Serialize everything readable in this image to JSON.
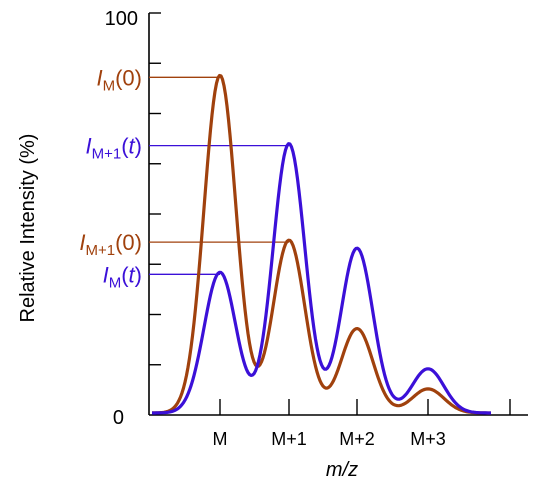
{
  "chart_data": {
    "type": "line",
    "title": "",
    "xlabel": "m/z",
    "ylabel": "Relative Intensity (%)",
    "ylim": [
      0,
      100
    ],
    "y_tick_labels": [
      "0",
      "100"
    ],
    "y_tick_count": 9,
    "categories": [
      "M",
      "M+1",
      "M+2",
      "M+3"
    ],
    "grid": false,
    "series": [
      {
        "id": "t0",
        "color": "#a0410d",
        "peaks": [
          84,
          43,
          21,
          6
        ],
        "baseline": 0.5
      },
      {
        "id": "t",
        "color": "#3b10d8",
        "peaks": [
          35,
          67,
          41,
          11
        ],
        "baseline": 0.5
      }
    ],
    "annotations": [
      {
        "var": "I",
        "sub": "M",
        "arg": "0",
        "value": 84,
        "color": "#a0410d"
      },
      {
        "var": "I",
        "sub": "M+1",
        "arg": "t",
        "value": 67,
        "color": "#3b10d8"
      },
      {
        "var": "I",
        "sub": "M+1",
        "arg": "0",
        "value": 43,
        "color": "#a0410d"
      },
      {
        "var": "I",
        "sub": "M",
        "arg": "t",
        "value": 35,
        "color": "#3b10d8"
      }
    ]
  }
}
